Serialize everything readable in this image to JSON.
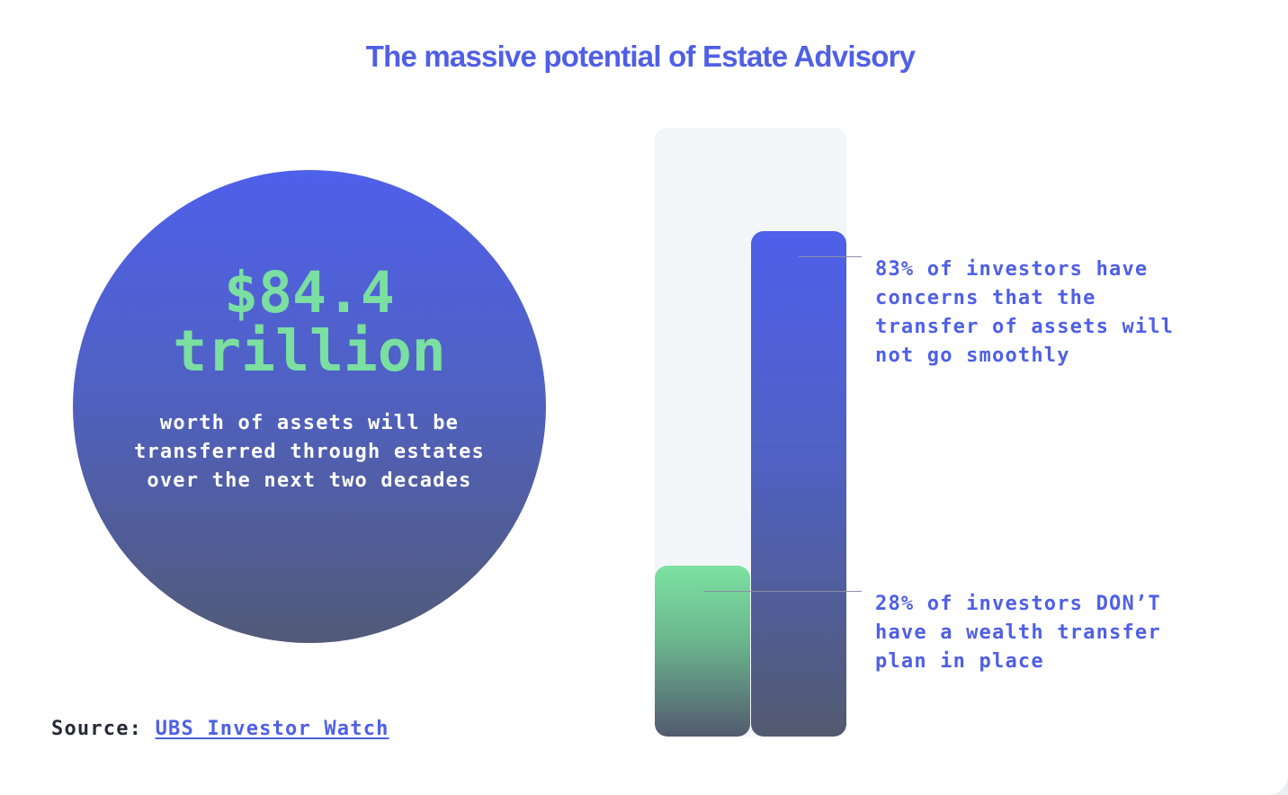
{
  "title": "The massive potential of Estate Advisory",
  "headline": {
    "amount": "$84.4",
    "unit": "trillion",
    "description": "worth of assets will be transferred through estates over the next two decades"
  },
  "source": {
    "label": "Source:",
    "link_text": "UBS Investor Watch"
  },
  "colors": {
    "accent_blue": "#4f5fe6",
    "accent_green": "#7adfa0",
    "track": "#f4f5f9"
  },
  "chart_data": {
    "type": "bar",
    "ylim": [
      0,
      100
    ],
    "unit": "%",
    "series": [
      {
        "value": 28,
        "color": "#7ce2a1",
        "annotation": "28% of investors DON’T have a wealth transfer plan in place"
      },
      {
        "value": 83,
        "color": "#4f60ea",
        "annotation": "83% of investors have concerns that the transfer of assets will not go smoothly"
      }
    ]
  }
}
